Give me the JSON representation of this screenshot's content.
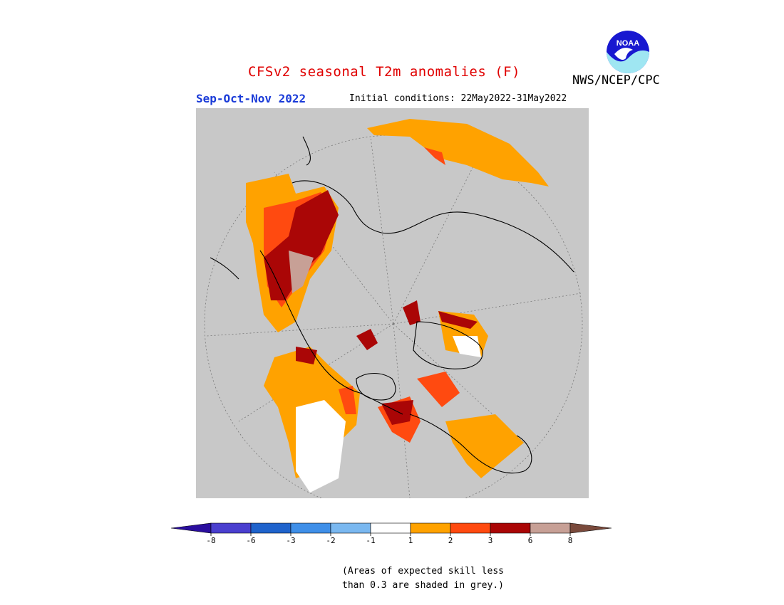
{
  "header": {
    "title": "CFSv2 seasonal T2m anomalies (F)",
    "agency": "NWS/NCEP/CPC",
    "season": "Sep-Oct-Nov 2022",
    "initial_conditions": "Initial conditions: 22May2022-31May2022",
    "logo_text": "NOAA"
  },
  "colorbar": {
    "ticks": [
      "-8",
      "-6",
      "-3",
      "-2",
      "-1",
      "1",
      "2",
      "3",
      "6",
      "8"
    ],
    "colors": [
      "#2a0e9e",
      "#4a3fcf",
      "#1f63cc",
      "#3f8fe8",
      "#7ab8f0",
      "#ffffff",
      "#ffa200",
      "#ff4a10",
      "#aa0606",
      "#c7a096",
      "#7a4a3c"
    ]
  },
  "note": {
    "line1": "(Areas of expected skill less",
    "line2": "than 0.3 are shaded in grey.)"
  },
  "colors": {
    "skill_grey": "#c8c8c8",
    "title_red": "#e00000",
    "season_blue": "#1a3bd8"
  }
}
